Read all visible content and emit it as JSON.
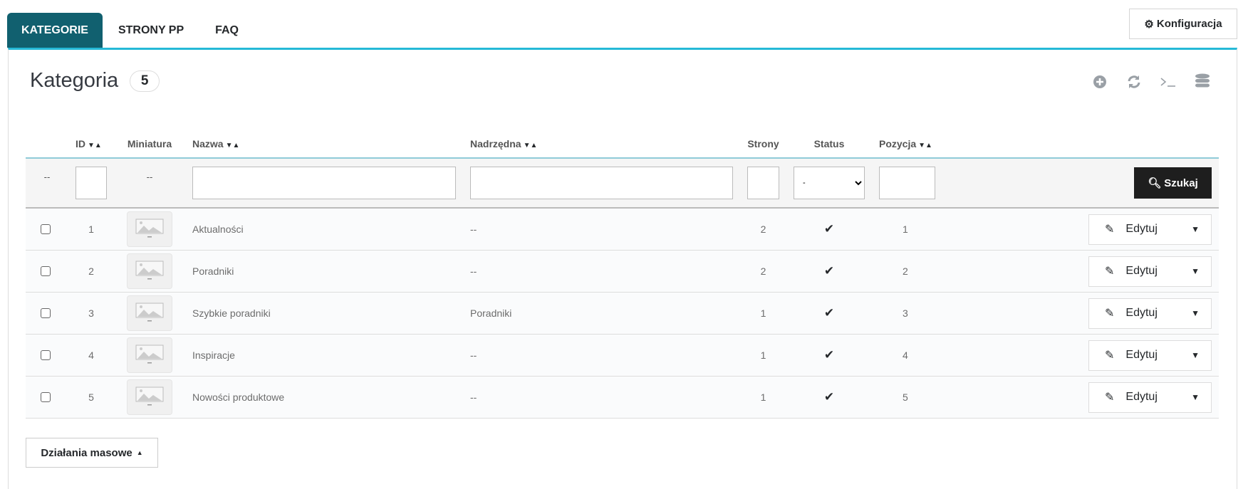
{
  "tabs": [
    {
      "label": "KATEGORIE",
      "active": true
    },
    {
      "label": "STRONY PP"
    },
    {
      "label": "FAQ"
    }
  ],
  "config_button": "Konfiguracja",
  "header": {
    "title": "Kategoria",
    "count": "5",
    "icons": [
      "add-circle-icon",
      "refresh-icon",
      "terminal-icon",
      "database-icon"
    ]
  },
  "columns": {
    "id": "ID",
    "thumb": "Miniatura",
    "name": "Nazwa",
    "parent": "Nadrzędna",
    "pages": "Strony",
    "status": "Status",
    "position": "Pozycja",
    "sort": "▼▲"
  },
  "filters": {
    "checkbox": "--",
    "thumb": "--",
    "status_selected": "-",
    "search": "Szukaj"
  },
  "rows": [
    {
      "id": "1",
      "name": "Aktualności",
      "parent": "--",
      "pages": "2",
      "status": true,
      "position": "1"
    },
    {
      "id": "2",
      "name": "Poradniki",
      "parent": "--",
      "pages": "2",
      "status": true,
      "position": "2"
    },
    {
      "id": "3",
      "name": "Szybkie poradniki",
      "parent": "Poradniki",
      "pages": "1",
      "status": true,
      "position": "3"
    },
    {
      "id": "4",
      "name": "Inspiracje",
      "parent": "--",
      "pages": "1",
      "status": true,
      "position": "4"
    },
    {
      "id": "5",
      "name": "Nowości produktowe",
      "parent": "--",
      "pages": "1",
      "status": true,
      "position": "5"
    }
  ],
  "row_action": "Edytuj",
  "bulk_actions": "Działania masowe",
  "colors": {
    "accent": "#25b9d7",
    "active_tab": "#11606f",
    "search_button": "#1e1e1e"
  }
}
